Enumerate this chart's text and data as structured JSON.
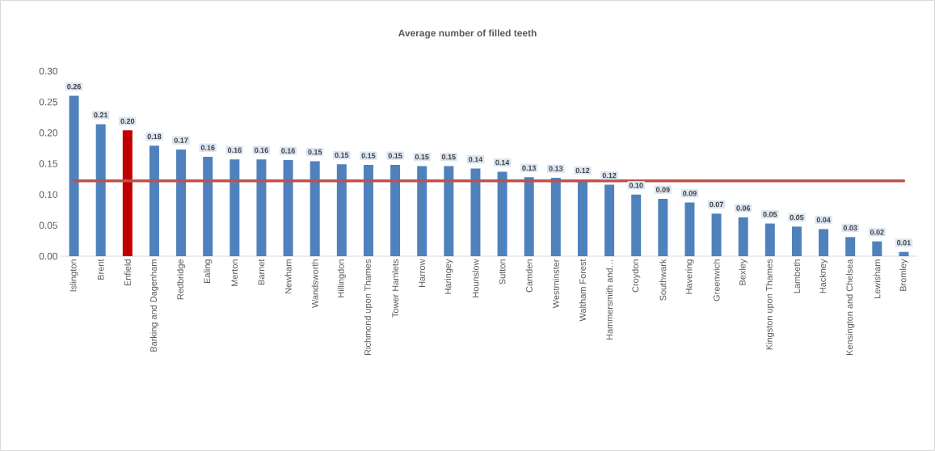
{
  "chart_data": {
    "type": "bar",
    "title": "Average number of filled teeth",
    "categories": [
      "Islington",
      "Brent",
      "Enfield",
      "Barking and Dagenham",
      "Redbridge",
      "Ealing",
      "Merton",
      "Barnet",
      "Newham",
      "Wandsworth",
      "Hillingdon",
      "Richmond upon Thames",
      "Tower Hamlets",
      "Harrow",
      "Haringey",
      "Hounslow",
      "Sutton",
      "Camden",
      "Westminster",
      "Waltham Forest",
      "Hammersmith and…",
      "Croydon",
      "Southwark",
      "Havering",
      "Greenwich",
      "Bexley",
      "Kingston upon Thames",
      "Lambeth",
      "Hackney",
      "Kensington and Chelsea",
      "Lewisham",
      "Bromley"
    ],
    "values": [
      0.26,
      0.214,
      0.204,
      0.179,
      0.173,
      0.161,
      0.157,
      0.157,
      0.156,
      0.154,
      0.149,
      0.148,
      0.148,
      0.146,
      0.146,
      0.142,
      0.137,
      0.128,
      0.127,
      0.124,
      0.116,
      0.1,
      0.093,
      0.087,
      0.069,
      0.063,
      0.053,
      0.048,
      0.044,
      0.031,
      0.024,
      0.007
    ],
    "value_labels": [
      "0.26",
      "0.21",
      "0.20",
      "0.18",
      "0.17",
      "0.16",
      "0.16",
      "0.16",
      "0.16",
      "0.15",
      "0.15",
      "0.15",
      "0.15",
      "0.15",
      "0.15",
      "0.14",
      "0.14",
      "0.13",
      "0.13",
      "0.12",
      "0.12",
      "0.10",
      "0.09",
      "0.09",
      "0.07",
      "0.06",
      "0.05",
      "0.05",
      "0.04",
      "0.03",
      "0.02",
      "0.01"
    ],
    "colors": [
      "#4f81bd",
      "#4f81bd",
      "#c00000",
      "#4f81bd",
      "#4f81bd",
      "#4f81bd",
      "#4f81bd",
      "#4f81bd",
      "#4f81bd",
      "#4f81bd",
      "#4f81bd",
      "#4f81bd",
      "#4f81bd",
      "#4f81bd",
      "#4f81bd",
      "#4f81bd",
      "#4f81bd",
      "#4f81bd",
      "#4f81bd",
      "#4f81bd",
      "#4f81bd",
      "#4f81bd",
      "#4f81bd",
      "#4f81bd",
      "#4f81bd",
      "#4f81bd",
      "#4f81bd",
      "#4f81bd",
      "#4f81bd",
      "#4f81bd",
      "#4f81bd",
      "#4f81bd"
    ],
    "ylim": [
      0,
      0.3
    ],
    "yticks": [
      {
        "value": 0,
        "label": "0.00"
      },
      {
        "value": 0.05,
        "label": "0.05"
      },
      {
        "value": 0.1,
        "label": "0.10"
      },
      {
        "value": 0.15,
        "label": "0.15"
      },
      {
        "value": 0.2,
        "label": "0.20"
      },
      {
        "value": 0.25,
        "label": "0.25"
      },
      {
        "value": 0.3,
        "label": "0.30"
      }
    ],
    "ref_lines": [
      {
        "axis": "y",
        "value": 0.122,
        "color": "#c0504d"
      }
    ]
  }
}
